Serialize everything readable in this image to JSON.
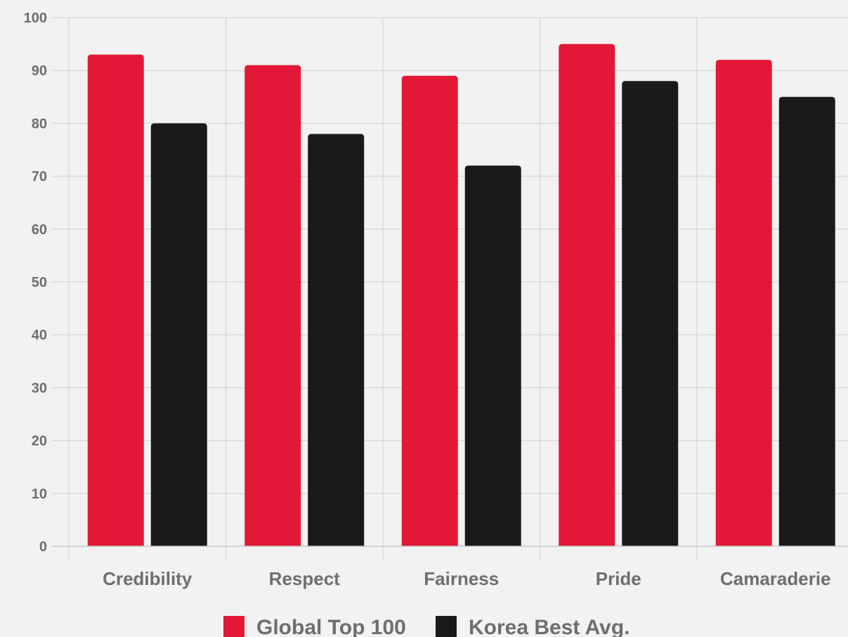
{
  "chart_data": {
    "type": "bar",
    "title": "",
    "xlabel": "",
    "ylabel": "",
    "categories": [
      "Credibility",
      "Respect",
      "Fairness",
      "Pride",
      "Camaraderie"
    ],
    "series": [
      {
        "name": "Global Top 100",
        "values": [
          93,
          91,
          89,
          95,
          92
        ],
        "color": "#e31837"
      },
      {
        "name": "Korea Best Avg.",
        "values": [
          80,
          78,
          72,
          88,
          85
        ],
        "color": "#1a1a1a"
      }
    ],
    "ylim": [
      0,
      100
    ],
    "y_ticks": [
      "0",
      "10",
      "20",
      "30",
      "40",
      "50",
      "60",
      "70",
      "80",
      "90",
      "100"
    ],
    "grid": true,
    "legend_position": "bottom"
  }
}
